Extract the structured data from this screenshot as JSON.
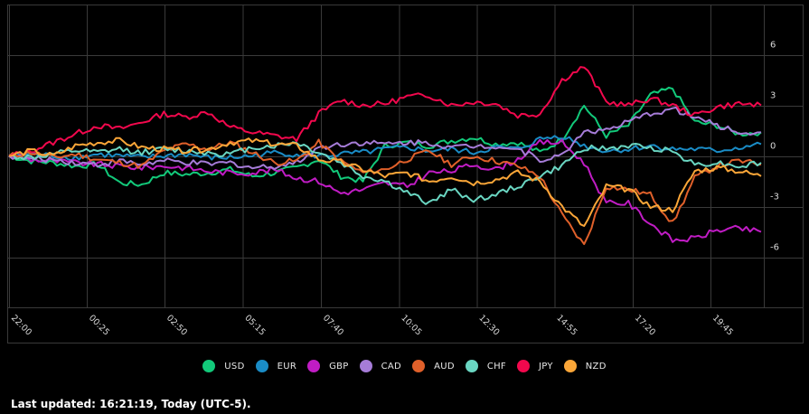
{
  "chart_data": {
    "type": "line",
    "title": "",
    "xlabel": "",
    "ylabel": "",
    "ylim": [
      -9,
      9
    ],
    "yticks": [
      6,
      3,
      0,
      -3,
      -6
    ],
    "ytick_labels": [
      "6",
      "3",
      "0",
      "-3",
      "-6"
    ],
    "xtick_labels": [
      "22:00",
      "00:25",
      "02:50",
      "05:15",
      "07:40",
      "10:05",
      "12:30",
      "14:55",
      "17:20",
      "19:45"
    ],
    "grid": true,
    "legend_position": "bottom",
    "x_sample_count": 35,
    "series": [
      {
        "name": "USD",
        "color": "#12c97a",
        "values": [
          0,
          -0.3,
          -0.4,
          -0.6,
          -0.5,
          -1.6,
          -1.7,
          -1.0,
          -1.1,
          -1.0,
          -0.8,
          -1.2,
          -1.0,
          -0.7,
          -0.2,
          -1.2,
          -1.5,
          0.6,
          0.8,
          0.6,
          0.9,
          1.1,
          0.7,
          0.8,
          0.2,
          1.0,
          3.0,
          1.2,
          1.8,
          3.6,
          4.0,
          2.0,
          1.8,
          1.3,
          1.4
        ]
      },
      {
        "name": "EUR",
        "color": "#1a8cc6",
        "values": [
          0,
          0.1,
          0.0,
          -0.1,
          0.1,
          0.0,
          -0.1,
          0.0,
          0.1,
          -0.1,
          -0.1,
          0.0,
          0.2,
          0.1,
          0.0,
          0.1,
          0.2,
          0.4,
          0.5,
          0.3,
          0.4,
          0.2,
          0.5,
          0.4,
          1.0,
          1.2,
          0.6,
          0.3,
          0.4,
          0.6,
          0.4,
          0.4,
          0.3,
          0.5,
          0.7
        ]
      },
      {
        "name": "GBP",
        "color": "#c01cc4",
        "values": [
          0,
          -0.2,
          -0.3,
          -0.4,
          -0.5,
          -0.6,
          -0.7,
          -0.6,
          -0.7,
          -0.9,
          -1.0,
          -1.0,
          -0.8,
          -1.3,
          -1.5,
          -2.2,
          -2.0,
          -1.6,
          -1.8,
          -1.0,
          -0.9,
          -0.5,
          -0.8,
          -0.2,
          0.8,
          0.8,
          -0.4,
          -2.8,
          -2.8,
          -4.0,
          -5.0,
          -4.9,
          -4.4,
          -4.3,
          -4.5
        ]
      },
      {
        "name": "CAD",
        "color": "#a67cd8",
        "values": [
          0,
          -0.2,
          -0.2,
          -0.4,
          -0.5,
          -0.3,
          -0.5,
          -0.3,
          -0.4,
          -0.5,
          -0.4,
          -0.7,
          -0.6,
          -0.4,
          0.5,
          0.7,
          0.8,
          0.7,
          0.8,
          0.8,
          0.5,
          0.6,
          0.6,
          0.4,
          -0.2,
          0.0,
          1.5,
          1.5,
          2.0,
          2.5,
          2.8,
          2.3,
          1.8,
          1.4,
          1.4
        ]
      },
      {
        "name": "AUD",
        "color": "#e0602a",
        "values": [
          0,
          0.2,
          -0.1,
          0.1,
          -0.2,
          -0.4,
          -0.6,
          0.3,
          0.7,
          0.4,
          0.8,
          0.2,
          -0.4,
          -0.3,
          0.8,
          -0.3,
          -1.0,
          -0.8,
          -0.2,
          0.3,
          -0.5,
          0.0,
          -0.3,
          -0.6,
          -1.2,
          -3.5,
          -5.3,
          -1.8,
          -2.0,
          -2.3,
          -4.0,
          -1.3,
          -0.6,
          -0.3,
          -0.5
        ]
      },
      {
        "name": "CHF",
        "color": "#6ad6c2",
        "values": [
          0,
          -0.1,
          0.1,
          0.3,
          0.2,
          0.4,
          0.2,
          0.4,
          0.3,
          0.2,
          0.1,
          0.5,
          0.6,
          0.8,
          0.2,
          -0.4,
          -1.2,
          -1.5,
          -2.2,
          -2.8,
          -2.0,
          -2.6,
          -2.3,
          -1.8,
          -1.2,
          -0.6,
          0.5,
          0.4,
          0.6,
          0.5,
          0.3,
          -0.5,
          -0.4,
          -0.6,
          -0.4
        ]
      },
      {
        "name": "JPY",
        "color": "#f2084d",
        "values": [
          0,
          0.3,
          0.8,
          1.3,
          1.8,
          1.6,
          2.0,
          2.5,
          2.3,
          2.6,
          1.7,
          1.4,
          1.2,
          1.0,
          2.5,
          3.3,
          3.0,
          3.1,
          3.5,
          3.6,
          3.0,
          3.2,
          3.1,
          2.4,
          2.5,
          4.5,
          5.3,
          3.2,
          3.0,
          3.4,
          3.0,
          2.4,
          2.9,
          3.1,
          3.0
        ]
      },
      {
        "name": "NZD",
        "color": "#fba638",
        "values": [
          0,
          0.3,
          0.0,
          0.6,
          0.8,
          0.9,
          0.5,
          0.4,
          0.3,
          0.4,
          0.8,
          0.9,
          0.7,
          0.6,
          -0.2,
          -0.4,
          -0.8,
          -1.2,
          -1.0,
          -1.5,
          -1.2,
          -1.6,
          -1.4,
          -1.0,
          -1.5,
          -3.0,
          -4.2,
          -1.8,
          -2.0,
          -3.0,
          -3.2,
          -0.9,
          -0.7,
          -0.9,
          -1.2
        ]
      }
    ]
  },
  "legend": {
    "items": [
      {
        "label": "USD",
        "color": "#12c97a"
      },
      {
        "label": "EUR",
        "color": "#1a8cc6"
      },
      {
        "label": "GBP",
        "color": "#c01cc4"
      },
      {
        "label": "CAD",
        "color": "#a67cd8"
      },
      {
        "label": "AUD",
        "color": "#e0602a"
      },
      {
        "label": "CHF",
        "color": "#6ad6c2"
      },
      {
        "label": "JPY",
        "color": "#f2084d"
      },
      {
        "label": "NZD",
        "color": "#fba638"
      }
    ]
  },
  "footer": {
    "last_updated": "Last updated: 16:21:19, Today (UTC-5)."
  }
}
